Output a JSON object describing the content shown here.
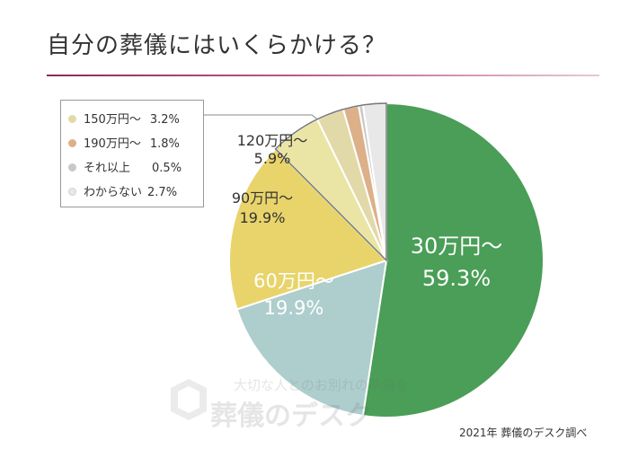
{
  "title": "自分の葬儀にはいくらかける？",
  "footnote": "2021年 葬儀のデスク調べ",
  "watermark": {
    "line1": "大切な人とのお別れの準備を",
    "line2": "葬儀のデスク"
  },
  "chart_data": {
    "type": "pie",
    "title": "自分の葬儀にはいくらかける？",
    "start": "12 o'clock",
    "direction": "clockwise",
    "slices": [
      {
        "name": "30万円〜",
        "value": 59.3,
        "label_line1": "30万円〜",
        "label_line2": "59.3%",
        "color": "#4a9e57",
        "label_color": "#ffffff"
      },
      {
        "name": "60万円〜",
        "value": 19.9,
        "label_line1": "60万円〜",
        "label_line2": "19.9%",
        "color": "#aecdcd",
        "label_color": "#ffffff"
      },
      {
        "name": "90万円〜",
        "value": 19.9,
        "label_line1": "90万円〜",
        "label_line2": "19.9%",
        "color": "#e8d46a",
        "label_color": "#333333"
      },
      {
        "name": "120万円〜",
        "value": 5.9,
        "label_line1": "120万円〜",
        "label_line2": "5.9%",
        "color": "#eae5a4",
        "label_color": "#333333"
      },
      {
        "name": "150万円〜",
        "value": 3.2,
        "color": "#e2d9a8"
      },
      {
        "name": "190万円〜",
        "value": 1.8,
        "color": "#dcb088"
      },
      {
        "name": "それ以上",
        "value": 0.5,
        "color": "#c8c8c8"
      },
      {
        "name": "わからない",
        "value": 2.7,
        "color": "#e8e8e8"
      }
    ],
    "legend": {
      "placement": "top-left",
      "entries": [
        {
          "name": "150万円〜",
          "value_text": "3.2%",
          "color": "#e2d9a8"
        },
        {
          "name": "190万円〜",
          "value_text": "1.8%",
          "color": "#dcb088"
        },
        {
          "name": "それ以上",
          "value_text": "0.5%",
          "color": "#c8c8c8"
        },
        {
          "name": "わからない",
          "value_text": "2.7%",
          "color": "#e8e8e8"
        }
      ]
    }
  }
}
